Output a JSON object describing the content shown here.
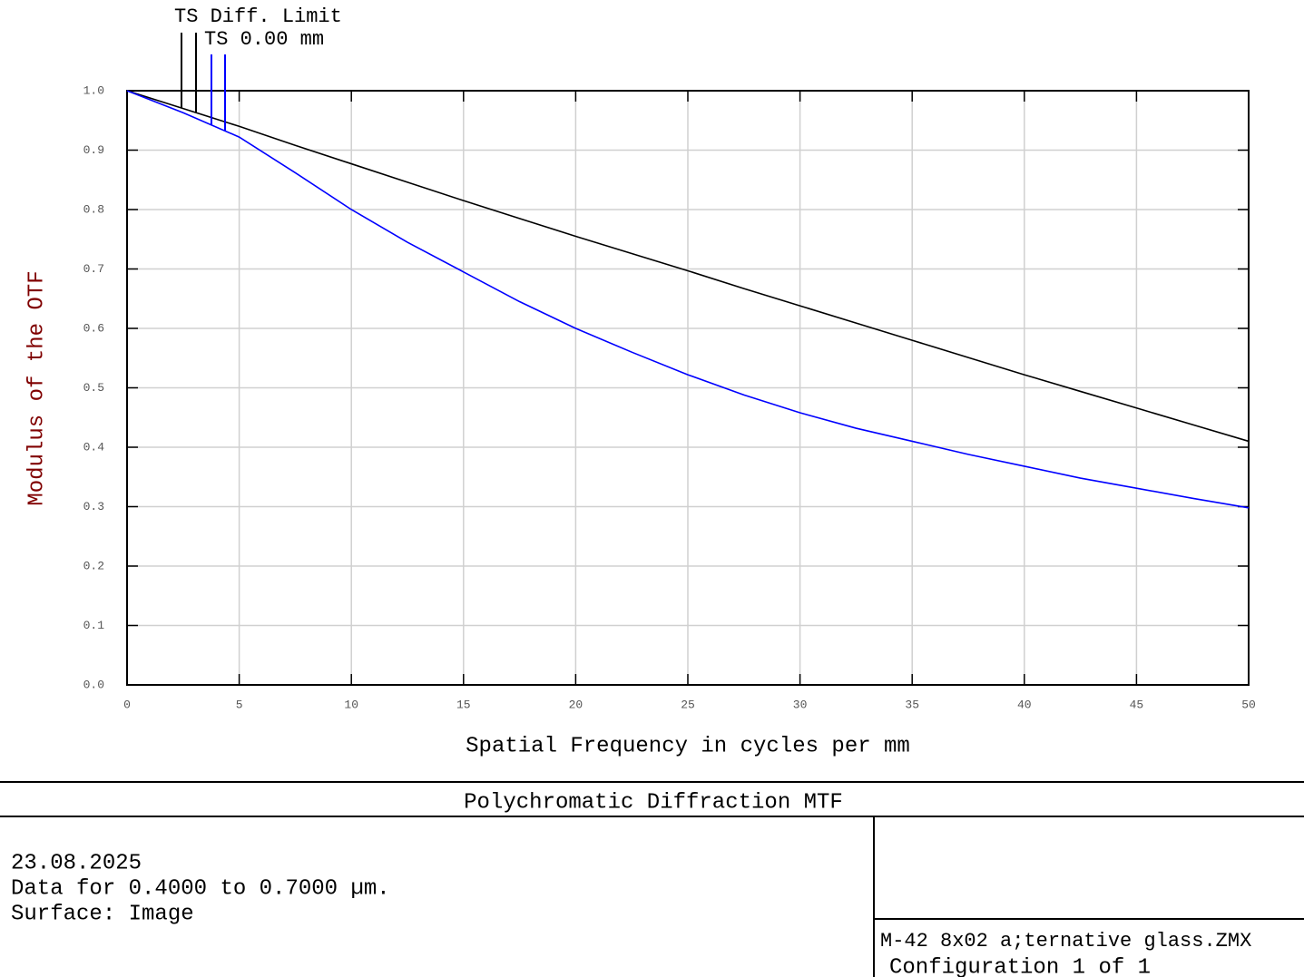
{
  "chart_data": {
    "type": "line",
    "xlabel": "Spatial Frequency in cycles per mm",
    "ylabel": "Modulus of the OTF",
    "x": [
      0,
      2.5,
      5,
      7.5,
      10,
      12.5,
      15,
      17.5,
      20,
      22.5,
      25,
      27.5,
      30,
      32.5,
      35,
      37.5,
      40,
      42.5,
      45,
      47.5,
      50
    ],
    "series": [
      {
        "name": "TS Diff. Limit",
        "color": "#000000",
        "values": [
          1.0,
          0.97,
          0.94,
          0.908,
          0.877,
          0.846,
          0.815,
          0.785,
          0.755,
          0.726,
          0.697,
          0.667,
          0.638,
          0.609,
          0.58,
          0.551,
          0.522,
          0.494,
          0.466,
          0.438,
          0.41
        ]
      },
      {
        "name": "TS 0.00 mm",
        "color": "#0000ff",
        "values": [
          1.0,
          0.963,
          0.922,
          0.862,
          0.8,
          0.745,
          0.695,
          0.645,
          0.6,
          0.56,
          0.522,
          0.488,
          0.458,
          0.432,
          0.41,
          0.388,
          0.368,
          0.348,
          0.331,
          0.314,
          0.298
        ]
      }
    ],
    "xlim": [
      0,
      50
    ],
    "ylim": [
      0,
      1
    ],
    "xticks": [
      0,
      5,
      10,
      15,
      20,
      25,
      30,
      35,
      40,
      45,
      50
    ],
    "yticks": [
      {
        "value": 0,
        "label": "0.0"
      },
      0.1,
      0.2,
      0.3,
      0.4,
      0.5,
      0.6,
      0.7,
      0.8,
      0.9,
      {
        "value": 1,
        "label": "1.0"
      }
    ],
    "grid": true
  },
  "footer": {
    "title": "Polychromatic Diffraction MTF",
    "lines": [
      "23.08.2025",
      "Data for 0.4000 to 0.7000 µm.",
      "Surface: Image"
    ],
    "file": "M-42 8x02 a;ternative glass.ZMX",
    "config": "Configuration 1 of 1"
  }
}
